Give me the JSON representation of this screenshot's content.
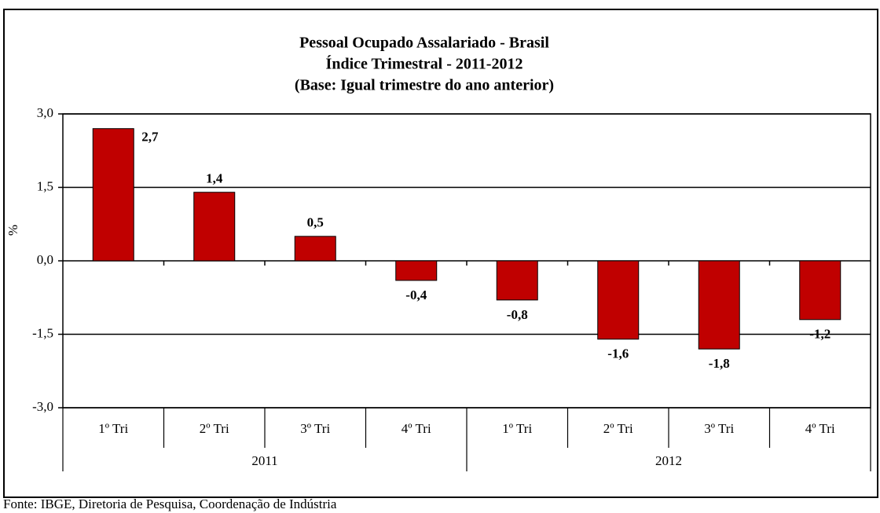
{
  "chart_data": {
    "type": "bar",
    "title": [
      "Pessoal Ocupado Assalariado  - Brasil",
      "Índice Trimestral - 2011-2012",
      "(Base: Igual trimestre do ano anterior)"
    ],
    "y_label": "%",
    "categories": [
      "1º Tri",
      "2º Tri",
      "3º Tri",
      "4º Tri",
      "1º Tri",
      "2º Tri",
      "3º Tri",
      "4º Tri"
    ],
    "groups": [
      "2011",
      "2012"
    ],
    "values": [
      2.7,
      1.4,
      0.5,
      -0.4,
      -0.8,
      -1.6,
      -1.8,
      -1.2
    ],
    "value_labels": [
      "2,7",
      "1,4",
      "0,5",
      "-0,4",
      "-0,8",
      "-1,6",
      "-1,8",
      "-1,2"
    ],
    "color": "#c00000",
    "ylim": [
      -3,
      3
    ],
    "yticks": [
      {
        "value": -3,
        "label": "-3,0"
      },
      {
        "value": -1.5,
        "label": "-1,5"
      },
      {
        "value": 0,
        "label": "0,0"
      },
      {
        "value": 1.5,
        "label": "1,5"
      },
      {
        "value": 3,
        "label": "3,0"
      }
    ],
    "grid": true,
    "source": "Fonte: IBGE, Diretoria de Pesquisa, Coordenação de Indústria"
  }
}
